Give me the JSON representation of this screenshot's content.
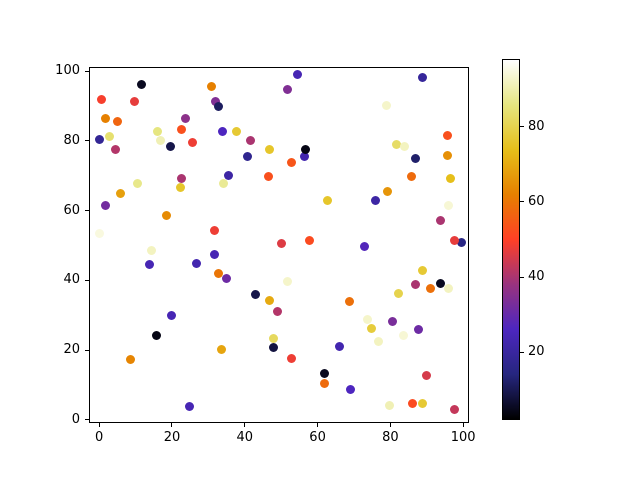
{
  "chart_data": {
    "type": "scatter",
    "x_ticks": [
      0,
      20,
      40,
      60,
      80,
      100
    ],
    "y_ticks": [
      0,
      20,
      40,
      60,
      80,
      100
    ],
    "xlim": [
      -2.8,
      101.6
    ],
    "ylim": [
      -0.9,
      101.2
    ],
    "grid": false,
    "marker_diameter_px": 9,
    "colorbar": {
      "ticks": [
        20,
        40,
        60,
        80
      ],
      "vmin": 2,
      "vmax": 98,
      "colormap": "CMRmap-like black-navy-violet-magenta-red-orange-gold-cream"
    },
    "points": [
      {
        "x": 11.7,
        "y": 96.3,
        "c": 5
      },
      {
        "x": 0.5,
        "y": 92.0,
        "c": 49
      },
      {
        "x": 9.7,
        "y": 91.3,
        "c": 47
      },
      {
        "x": 30.8,
        "y": 95.6,
        "c": 62
      },
      {
        "x": 31.9,
        "y": 91.2,
        "c": 34
      },
      {
        "x": 32.8,
        "y": 89.8,
        "c": 11
      },
      {
        "x": 1.8,
        "y": 86.3,
        "c": 62
      },
      {
        "x": 4.9,
        "y": 85.5,
        "c": 57
      },
      {
        "x": 23.6,
        "y": 86.4,
        "c": 36
      },
      {
        "x": 22.7,
        "y": 83.4,
        "c": 53
      },
      {
        "x": 0.0,
        "y": 80.5,
        "c": 18
      },
      {
        "x": 2.7,
        "y": 81.4,
        "c": 84
      },
      {
        "x": 4.5,
        "y": 77.6,
        "c": 41
      },
      {
        "x": 15.9,
        "y": 82.6,
        "c": 86
      },
      {
        "x": 16.8,
        "y": 80.2,
        "c": 91
      },
      {
        "x": 19.7,
        "y": 78.5,
        "c": 9
      },
      {
        "x": 25.7,
        "y": 79.5,
        "c": 48
      },
      {
        "x": 33.9,
        "y": 82.6,
        "c": 26
      },
      {
        "x": 37.6,
        "y": 82.8,
        "c": 77
      },
      {
        "x": 41.7,
        "y": 80.0,
        "c": 40
      },
      {
        "x": 40.7,
        "y": 75.6,
        "c": 17
      },
      {
        "x": 46.8,
        "y": 77.6,
        "c": 76
      },
      {
        "x": 46.4,
        "y": 69.8,
        "c": 53
      },
      {
        "x": 35.6,
        "y": 70.0,
        "c": 21
      },
      {
        "x": 34.2,
        "y": 67.8,
        "c": 88
      },
      {
        "x": 22.6,
        "y": 69.2,
        "c": 40
      },
      {
        "x": 22.3,
        "y": 66.7,
        "c": 76
      },
      {
        "x": 10.5,
        "y": 67.9,
        "c": 87
      },
      {
        "x": 5.8,
        "y": 64.9,
        "c": 68
      },
      {
        "x": 1.8,
        "y": 61.4,
        "c": 32
      },
      {
        "x": 18.6,
        "y": 58.7,
        "c": 64
      },
      {
        "x": 0.0,
        "y": 53.4,
        "c": 95
      },
      {
        "x": 31.7,
        "y": 54.2,
        "c": 48
      },
      {
        "x": 54.6,
        "y": 99.0,
        "c": 24
      },
      {
        "x": 51.8,
        "y": 94.8,
        "c": 34
      },
      {
        "x": 88.7,
        "y": 98.1,
        "c": 19
      },
      {
        "x": 79.0,
        "y": 90.3,
        "c": 93
      },
      {
        "x": 95.8,
        "y": 81.5,
        "c": 53
      },
      {
        "x": 81.8,
        "y": 79.0,
        "c": 83
      },
      {
        "x": 83.9,
        "y": 78.3,
        "c": 92
      },
      {
        "x": 56.5,
        "y": 75.5,
        "c": 23
      },
      {
        "x": 56.7,
        "y": 77.5,
        "c": 4
      },
      {
        "x": 52.7,
        "y": 73.9,
        "c": 54
      },
      {
        "x": 86.8,
        "y": 74.9,
        "c": 12
      },
      {
        "x": 95.6,
        "y": 75.8,
        "c": 65
      },
      {
        "x": 85.8,
        "y": 69.7,
        "c": 58
      },
      {
        "x": 96.5,
        "y": 69.2,
        "c": 74
      },
      {
        "x": 79.2,
        "y": 65.6,
        "c": 66
      },
      {
        "x": 62.8,
        "y": 63.0,
        "c": 76
      },
      {
        "x": 75.8,
        "y": 63.0,
        "c": 21
      },
      {
        "x": 96.0,
        "y": 61.4,
        "c": 94
      },
      {
        "x": 93.9,
        "y": 57.3,
        "c": 40
      },
      {
        "x": 14.5,
        "y": 48.5,
        "c": 92
      },
      {
        "x": 13.7,
        "y": 44.7,
        "c": 24
      },
      {
        "x": 26.8,
        "y": 44.9,
        "c": 23
      },
      {
        "x": 31.7,
        "y": 47.5,
        "c": 24
      },
      {
        "x": 32.8,
        "y": 42.0,
        "c": 60
      },
      {
        "x": 35.1,
        "y": 40.6,
        "c": 31
      },
      {
        "x": 42.9,
        "y": 36.0,
        "c": 9
      },
      {
        "x": 46.8,
        "y": 34.1,
        "c": 70
      },
      {
        "x": 19.8,
        "y": 29.9,
        "c": 24
      },
      {
        "x": 15.8,
        "y": 24.2,
        "c": 4
      },
      {
        "x": 33.7,
        "y": 20.3,
        "c": 69
      },
      {
        "x": 8.7,
        "y": 17.4,
        "c": 63
      },
      {
        "x": 24.7,
        "y": 3.8,
        "c": 24
      },
      {
        "x": 50.0,
        "y": 50.6,
        "c": 46
      },
      {
        "x": 57.7,
        "y": 51.3,
        "c": 52
      },
      {
        "x": 72.8,
        "y": 49.6,
        "c": 27
      },
      {
        "x": 99.5,
        "y": 50.9,
        "c": 15
      },
      {
        "x": 97.5,
        "y": 51.3,
        "c": 47
      },
      {
        "x": 88.9,
        "y": 42.7,
        "c": 77
      },
      {
        "x": 51.7,
        "y": 39.6,
        "c": 93
      },
      {
        "x": 86.8,
        "y": 38.9,
        "c": 40
      },
      {
        "x": 90.9,
        "y": 37.7,
        "c": 59
      },
      {
        "x": 96.0,
        "y": 37.7,
        "c": 92
      },
      {
        "x": 93.9,
        "y": 39.0,
        "c": 5
      },
      {
        "x": 82.1,
        "y": 36.1,
        "c": 80
      },
      {
        "x": 68.7,
        "y": 33.9,
        "c": 59
      },
      {
        "x": 49.0,
        "y": 31.1,
        "c": 41
      },
      {
        "x": 73.8,
        "y": 28.9,
        "c": 93
      },
      {
        "x": 80.7,
        "y": 28.2,
        "c": 33
      },
      {
        "x": 74.9,
        "y": 26.1,
        "c": 78
      },
      {
        "x": 87.7,
        "y": 25.8,
        "c": 31
      },
      {
        "x": 83.6,
        "y": 24.2,
        "c": 94
      },
      {
        "x": 76.6,
        "y": 22.4,
        "c": 92
      },
      {
        "x": 47.9,
        "y": 23.4,
        "c": 82
      },
      {
        "x": 47.9,
        "y": 20.8,
        "c": 8
      },
      {
        "x": 65.9,
        "y": 21.0,
        "c": 23
      },
      {
        "x": 52.7,
        "y": 17.5,
        "c": 48
      },
      {
        "x": 61.9,
        "y": 13.4,
        "c": 5
      },
      {
        "x": 61.9,
        "y": 10.3,
        "c": 58
      },
      {
        "x": 69.0,
        "y": 8.6,
        "c": 26
      },
      {
        "x": 90.0,
        "y": 12.7,
        "c": 45
      },
      {
        "x": 79.8,
        "y": 4.1,
        "c": 91
      },
      {
        "x": 86.0,
        "y": 4.8,
        "c": 52
      },
      {
        "x": 88.9,
        "y": 4.6,
        "c": 77
      },
      {
        "x": 97.6,
        "y": 2.9,
        "c": 43
      }
    ]
  },
  "colors": {
    "background": "#ffffff",
    "axis": "#000000",
    "cmap_stops": [
      {
        "f": 0.0,
        "hex": "#000000"
      },
      {
        "f": 0.125,
        "hex": "#26267f"
      },
      {
        "f": 0.25,
        "hex": "#4d26bf"
      },
      {
        "f": 0.375,
        "hex": "#99337f"
      },
      {
        "f": 0.5,
        "hex": "#ff4026"
      },
      {
        "f": 0.625,
        "hex": "#e68000"
      },
      {
        "f": 0.75,
        "hex": "#e6bf1a"
      },
      {
        "f": 0.875,
        "hex": "#e6e680"
      },
      {
        "f": 1.0,
        "hex": "#ffffff"
      }
    ]
  }
}
